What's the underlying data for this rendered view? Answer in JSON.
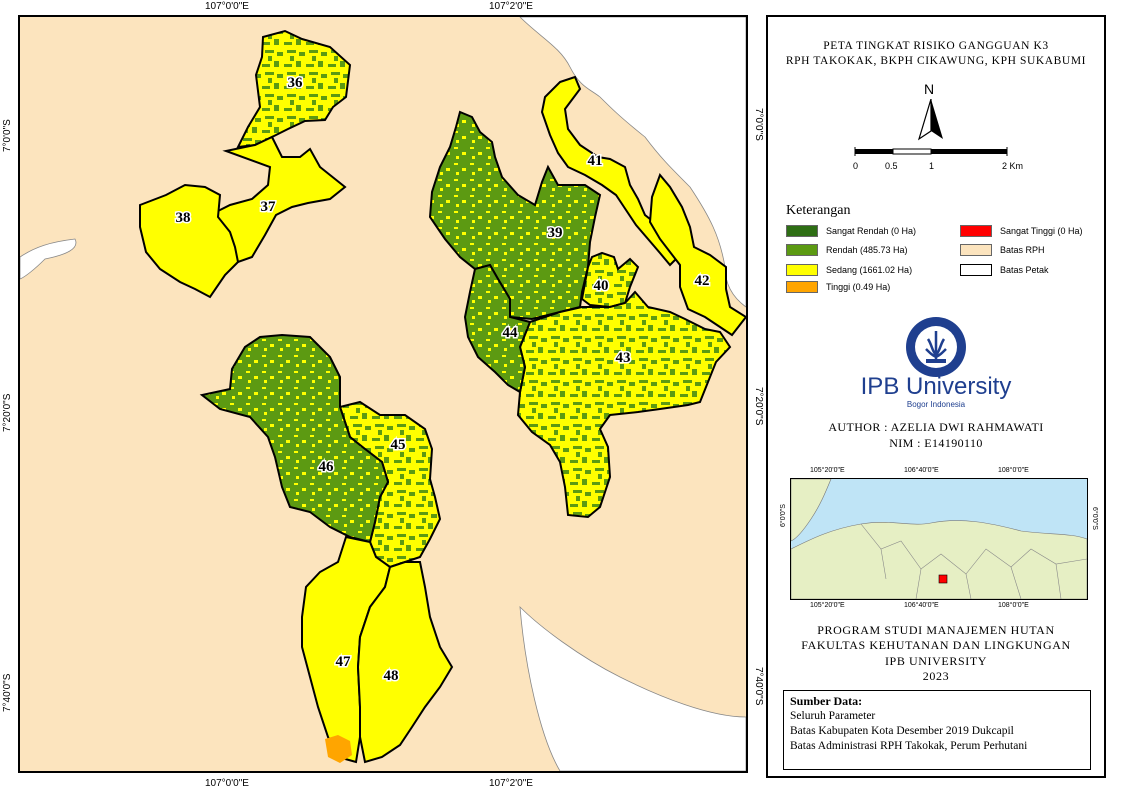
{
  "map": {
    "coords_top": [
      "107°0'0\"E",
      "107°2'0\"E"
    ],
    "coords_bottom": [
      "107°0'0\"E",
      "107°2'0\"E"
    ],
    "coords_left": [
      "7°0'0\"S",
      "7°20'0\"S",
      "7°40'0\"S"
    ],
    "coords_right": [
      "7°0'0\"S",
      "7°20'0\"S",
      "7°40'0\"S"
    ],
    "petak_labels": [
      "36",
      "37",
      "38",
      "39",
      "40",
      "41",
      "42",
      "43",
      "44",
      "45",
      "46",
      "47",
      "48"
    ],
    "colors": {
      "background": "#fce4be",
      "sangat_rendah": "#2e7d1a",
      "rendah": "#5c9a12",
      "sedang": "#ffff00",
      "tinggi": "#ffa500",
      "sangat_tinggi": "#ff0000"
    }
  },
  "panel": {
    "title_line1": "PETA TINGKAT RISIKO GANGGUAN K3",
    "title_line2": "RPH TAKOKAK, BKPH CIKAWUNG, KPH SUKABUMI",
    "north": "N",
    "scale_labels": [
      "0",
      "0.5",
      "1",
      "2 Km"
    ],
    "legend_title": "Keterangan",
    "legend": [
      {
        "label": "Sangat Rendah (0 Ha)",
        "color": "#2e6e14"
      },
      {
        "label": "Rendah (485.73 Ha)",
        "color": "#5c9a12"
      },
      {
        "label": "Sedang (1661.02 Ha)",
        "color": "#ffff00"
      },
      {
        "label": "Tinggi (0.49 Ha)",
        "color": "#ffa500"
      },
      {
        "label": "Sangat Tinggi (0 Ha)",
        "color": "#ff0000"
      },
      {
        "label": "Batas RPH",
        "color": "#fce4be"
      },
      {
        "label": "Batas Petak",
        "color": "#ffffff"
      }
    ],
    "university": "IPB University",
    "university_sub": "Bogor Indonesia",
    "author": "AUTHOR : AZELIA DWI RAHMAWATI",
    "nim": "NIM : E14190110",
    "inset_coords_top": [
      "105°20'0\"E",
      "106°40'0\"E",
      "108°0'0\"E"
    ],
    "inset_coords_bottom": [
      "105°20'0\"E",
      "106°40'0\"E",
      "108°0'0\"E"
    ],
    "inset_coords_side": "6°0'0\"S",
    "program_line1": "PROGRAM STUDI MANAJEMEN HUTAN",
    "program_line2": "FAKULTAS KEHUTANAN DAN LINGKUNGAN",
    "program_line3": "IPB UNIVERSITY",
    "program_year": "2023",
    "source_title": "Sumber Data:",
    "source_lines": [
      "Seluruh Parameter",
      "Batas Kabupaten Kota Desember 2019 Dukcapil",
      "Batas Administrasi RPH Takokak, Perum Perhutani"
    ]
  }
}
